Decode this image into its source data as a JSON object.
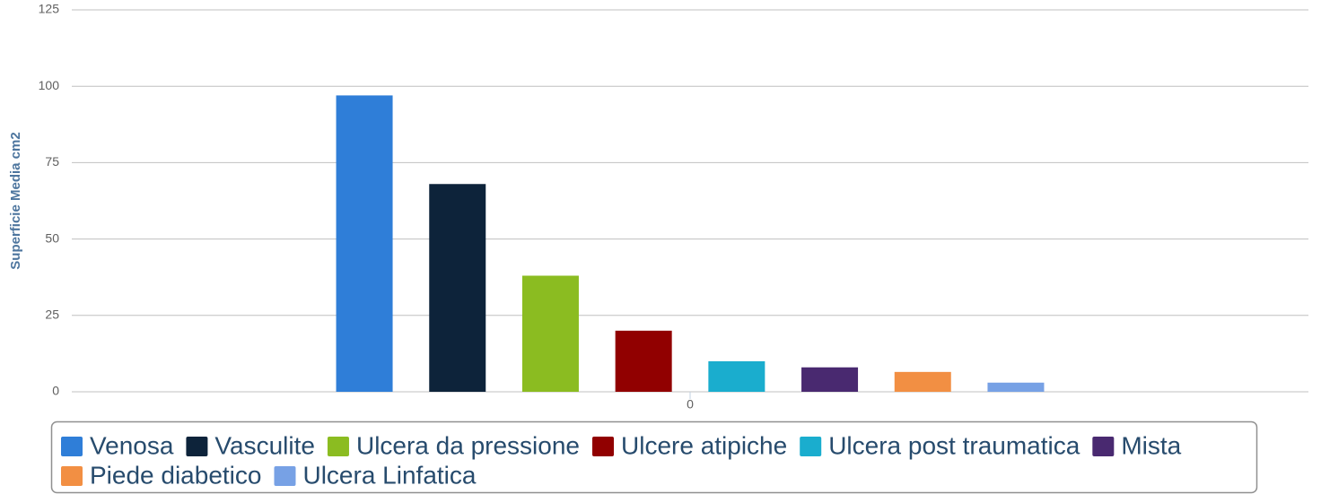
{
  "chart_data": {
    "type": "bar",
    "y_label": "Superficie Media cm2",
    "categories": [
      "0"
    ],
    "series": [
      {
        "name": "Venosa",
        "color": "#2f7ed8",
        "values": [
          97
        ]
      },
      {
        "name": "Vasculite",
        "color": "#0d233a",
        "values": [
          68
        ]
      },
      {
        "name": "Ulcera da pressione",
        "color": "#8bbc21",
        "values": [
          38
        ]
      },
      {
        "name": "Ulcere atipiche",
        "color": "#910000",
        "values": [
          20
        ]
      },
      {
        "name": "Ulcera post traumatica",
        "color": "#1aadce",
        "values": [
          10
        ]
      },
      {
        "name": "Mista",
        "color": "#492970",
        "values": [
          8
        ]
      },
      {
        "name": "Piede diabetico",
        "color": "#f28f43",
        "values": [
          6.5
        ]
      },
      {
        "name": "Ulcera Linfatica",
        "color": "#77a1e5",
        "values": [
          3
        ]
      }
    ],
    "ylim": [
      0,
      125
    ],
    "yticks": [
      0,
      25,
      50,
      75,
      100,
      125
    ],
    "grid": true,
    "legend": "bottom"
  }
}
